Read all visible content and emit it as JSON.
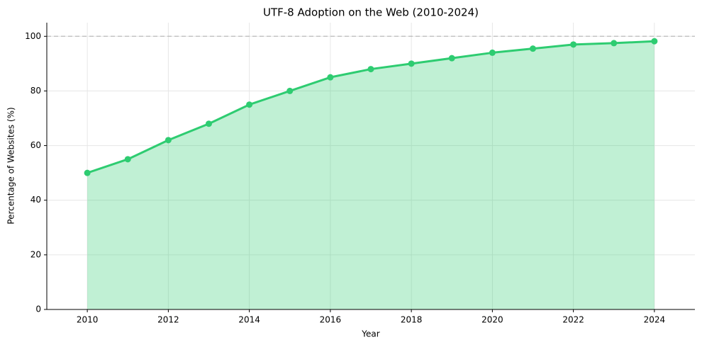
{
  "chart_data": {
    "type": "area",
    "title": "UTF-8 Adoption on the Web (2010-2024)",
    "x_label": "Year",
    "y_label": "Percentage of Websites (%)",
    "x": [
      2010,
      2011,
      2012,
      2013,
      2014,
      2015,
      2016,
      2017,
      2018,
      2019,
      2020,
      2021,
      2022,
      2023,
      2024
    ],
    "values": [
      50,
      55,
      62,
      68,
      75,
      80,
      85,
      88,
      90,
      92,
      94,
      95.5,
      97,
      97.5,
      98.2
    ],
    "color": "#2ecc71",
    "xlim": [
      2009,
      2025
    ],
    "xticks": [
      2010,
      2012,
      2014,
      2016,
      2018,
      2020,
      2022,
      2024
    ],
    "ylim": [
      0,
      105
    ],
    "yticks": [
      0,
      20,
      40,
      60,
      80,
      100
    ],
    "reference_line": 100,
    "grid": true
  }
}
